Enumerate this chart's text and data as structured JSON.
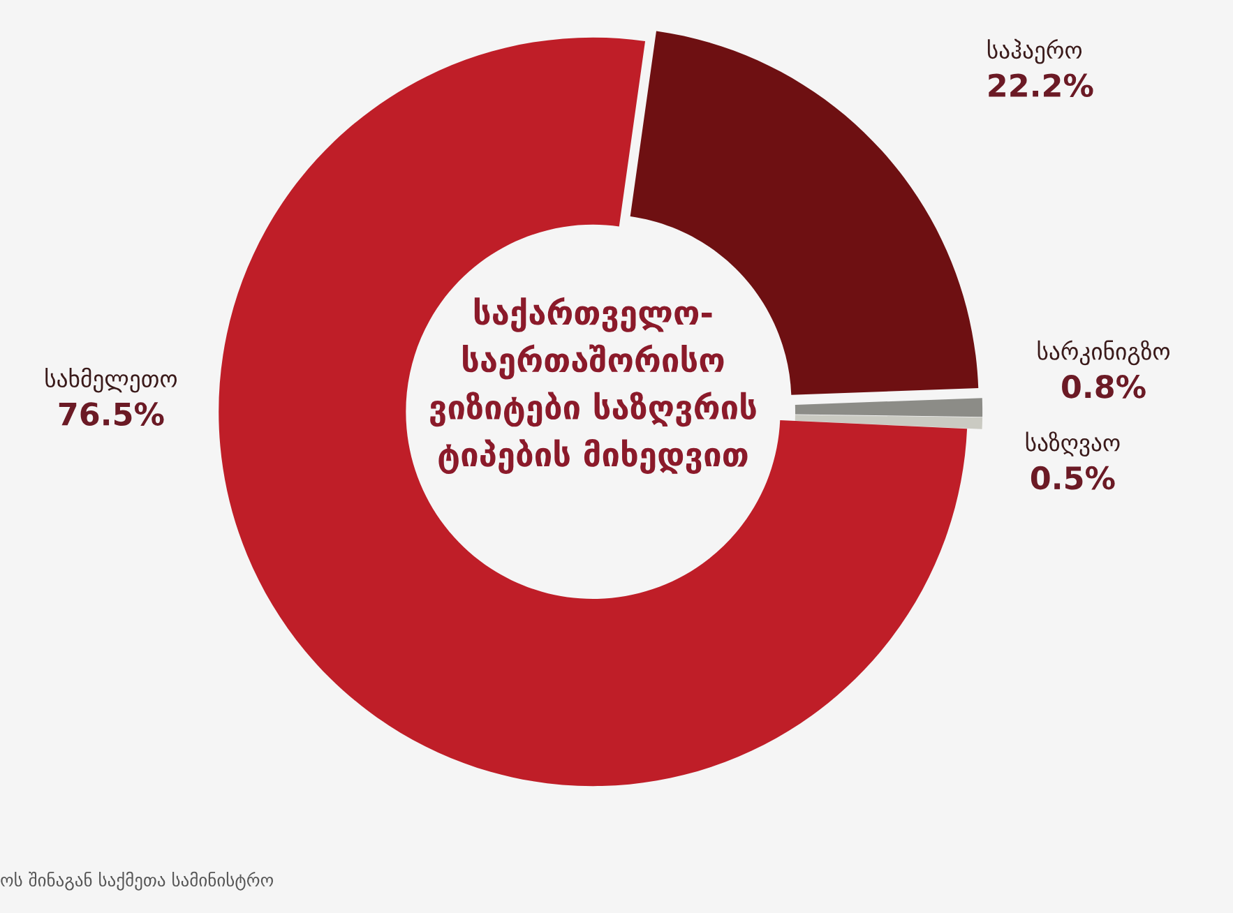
{
  "chart_data": {
    "type": "donut",
    "title": "საქართველო-\nსაერთაშორისო\nვიზიტები საზღვრის\nტიპების მიხედვით",
    "categories": [
      "საჰაერო",
      "სარკინიგზო",
      "საზღვაო",
      "სახმელეთო"
    ],
    "values": [
      22.2,
      0.8,
      0.5,
      76.5
    ],
    "value_labels": [
      "22.2%",
      "0.8%",
      "0.5%",
      "76.5%"
    ],
    "colors": [
      "#6e1012",
      "#8c8c87",
      "#cacac2",
      "#bf1e28"
    ],
    "annotations": [
      "ოს შინაგან საქმეთა სამინისტრო"
    ],
    "legend": false
  }
}
